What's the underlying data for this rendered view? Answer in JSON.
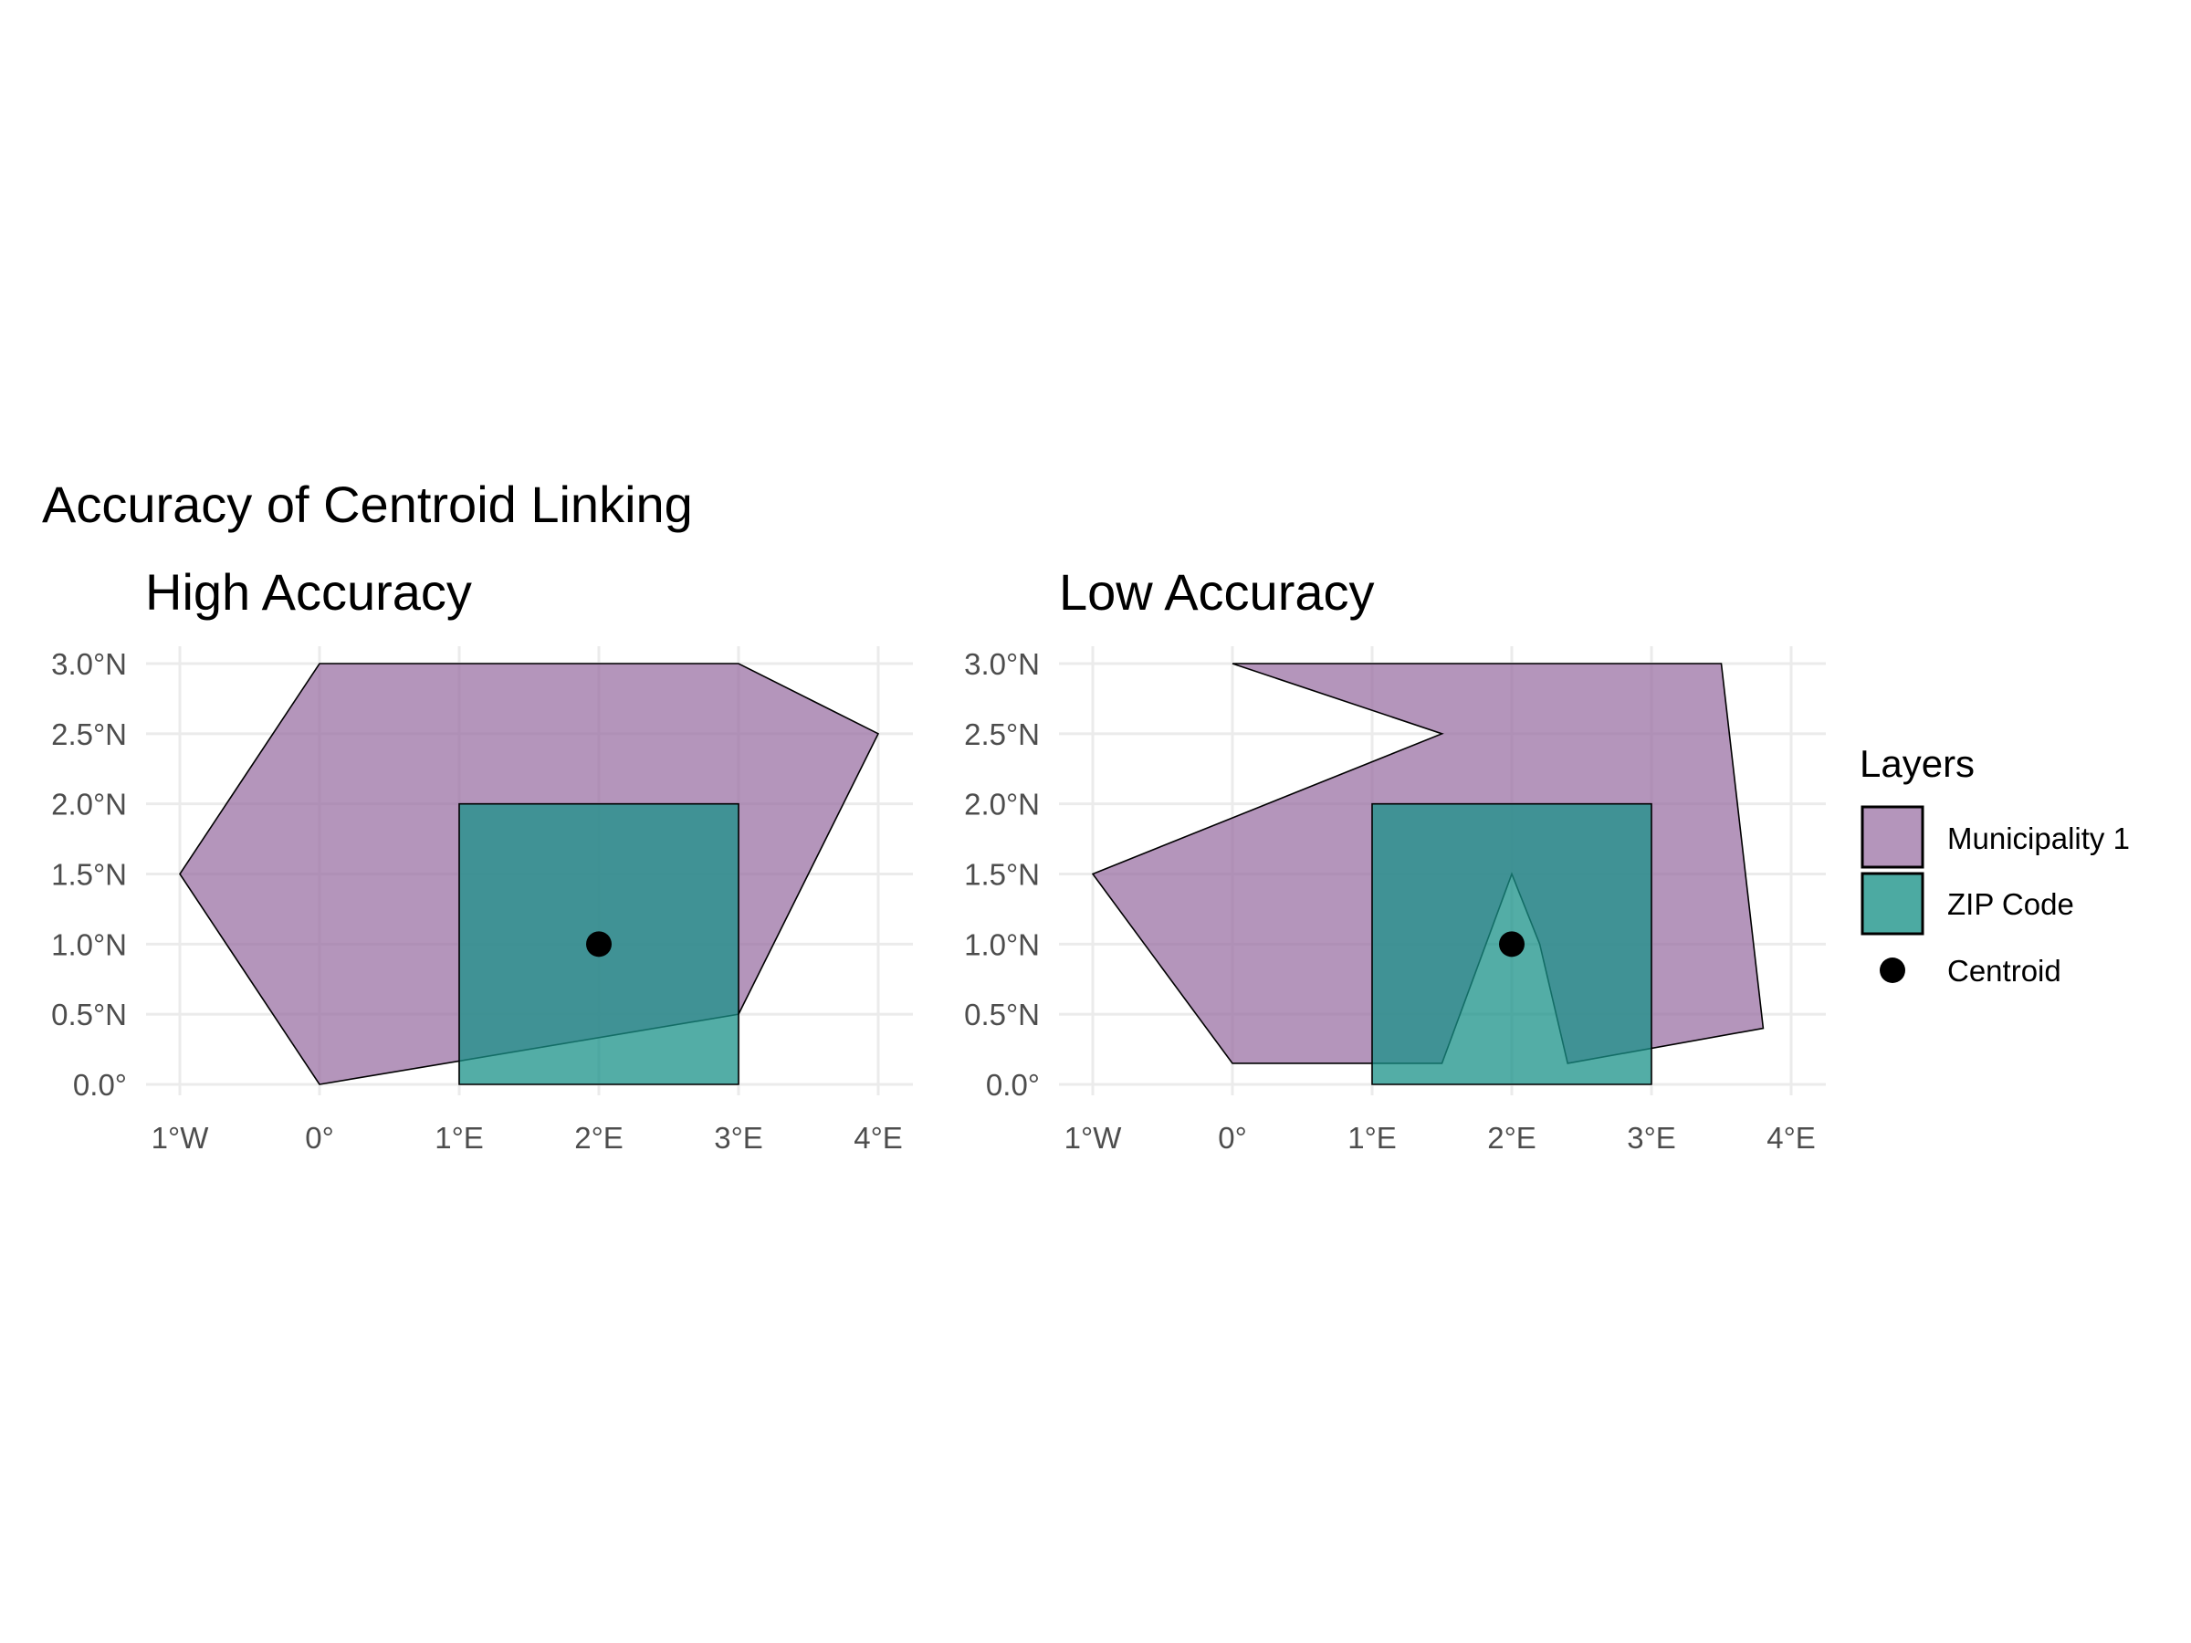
{
  "title": "Accuracy of Centroid Linking",
  "colors": {
    "municipality": "#9b72a4",
    "zip": "#1a9288",
    "centroid": "#000000",
    "grid": "#ebebeb",
    "outline": "#000000"
  },
  "legend": {
    "title": "Layers",
    "items": [
      {
        "label": "Municipality 1",
        "key": "municipality"
      },
      {
        "label": "ZIP Code",
        "key": "zip"
      },
      {
        "label": "Centroid",
        "key": "centroid"
      }
    ]
  },
  "axes": {
    "x_ticks": [
      -1,
      0,
      1,
      2,
      3,
      4
    ],
    "x_tick_labels": [
      "1°W",
      "0°",
      "1°E",
      "2°E",
      "3°E",
      "4°E"
    ],
    "y_ticks": [
      0,
      0.5,
      1,
      1.5,
      2,
      2.5,
      3
    ],
    "y_tick_labels": [
      "0.0°",
      "0.5°N",
      "1.0°N",
      "1.5°N",
      "2.0°N",
      "2.5°N",
      "3.0°N"
    ],
    "xlim": [
      -1,
      4
    ],
    "ylim": [
      0,
      3
    ]
  },
  "panels": [
    {
      "title": "High Accuracy",
      "municipality": [
        [
          0,
          0
        ],
        [
          3,
          0.5
        ],
        [
          4,
          2.5
        ],
        [
          3,
          3
        ],
        [
          0,
          3
        ],
        [
          -1,
          1.5
        ]
      ],
      "zip": [
        [
          1,
          0
        ],
        [
          3,
          0
        ],
        [
          3,
          2
        ],
        [
          1,
          2
        ]
      ],
      "zip_outline_only": false,
      "centroid": [
        2,
        1
      ]
    },
    {
      "title": "Low Accuracy",
      "municipality": [
        [
          0,
          0.15
        ],
        [
          1.5,
          0.15
        ],
        [
          2,
          1.5
        ],
        [
          2.2,
          1
        ],
        [
          2.4,
          0.15
        ],
        [
          3.8,
          0.4
        ],
        [
          3.5,
          3
        ],
        [
          0,
          3
        ],
        [
          1.5,
          2.5
        ],
        [
          -1,
          1.5
        ]
      ],
      "zip": [
        [
          1,
          0
        ],
        [
          3,
          0
        ],
        [
          3,
          2
        ],
        [
          1,
          2
        ]
      ],
      "zip_outline_only": false,
      "centroid": [
        2,
        1
      ]
    }
  ]
}
